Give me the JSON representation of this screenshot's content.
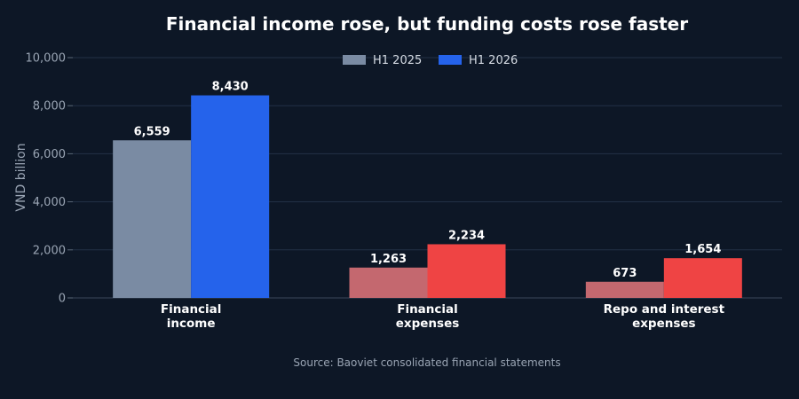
{
  "chart_data": {
    "type": "bar",
    "title": "Financial income rose, but funding costs rose faster",
    "ylabel": "VND billion",
    "ylim": [
      0,
      10000
    ],
    "yticks": [
      "0",
      "2,000",
      "4,000",
      "6,000",
      "8,000",
      "10,000"
    ],
    "grid": true,
    "legend_position": "top-center",
    "categories": [
      [
        "Financial",
        "income"
      ],
      [
        "Financial",
        "expenses"
      ],
      [
        "Repo and interest",
        "expenses"
      ]
    ],
    "series": [
      {
        "name": "H1 2025",
        "values": [
          6559,
          1263,
          673
        ],
        "labels": [
          "6,559",
          "1,263",
          "673"
        ],
        "colors": [
          "#7a8ba3",
          "#c4686f",
          "#c4686f"
        ]
      },
      {
        "name": "H1 2026",
        "values": [
          8430,
          2234,
          1654
        ],
        "labels": [
          "8,430",
          "2,234",
          "1,654"
        ],
        "colors": [
          "#2563eb",
          "#ef4444",
          "#ef4444"
        ]
      }
    ],
    "legend_colors": [
      "#7a8ba3",
      "#2563eb"
    ]
  },
  "source": "Source: Baoviet consolidated financial statements"
}
